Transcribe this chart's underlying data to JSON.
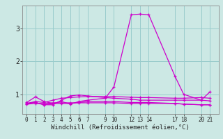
{
  "xlabel": "Windchill (Refroidissement éolien,°C)",
  "bg_color": "#cce8e4",
  "line_color": "#cc00cc",
  "grid_color": "#99cccc",
  "x_ticks": [
    0,
    1,
    2,
    3,
    4,
    5,
    6,
    7,
    9,
    10,
    12,
    13,
    14,
    17,
    18,
    20,
    21
  ],
  "y_ticks": [
    1,
    2,
    3
  ],
  "xlim": [
    -0.5,
    22
  ],
  "ylim": [
    0.4,
    3.7
  ],
  "lines": [
    {
      "x": [
        0,
        1,
        2,
        3,
        4,
        5,
        6,
        7,
        9,
        10,
        12,
        13,
        14,
        17,
        18,
        20,
        21
      ],
      "y": [
        0.75,
        0.92,
        0.78,
        0.72,
        0.78,
        0.7,
        0.78,
        0.82,
        0.88,
        1.22,
        3.42,
        3.44,
        3.42,
        1.55,
        1.0,
        0.82,
        1.07
      ]
    },
    {
      "x": [
        0,
        1,
        2,
        3,
        4,
        5,
        6,
        7,
        9,
        10,
        12,
        13,
        14,
        17,
        18,
        20,
        21
      ],
      "y": [
        0.72,
        0.78,
        0.75,
        0.82,
        0.88,
        0.9,
        0.92,
        0.93,
        0.93,
        0.93,
        0.91,
        0.9,
        0.9,
        0.88,
        0.88,
        0.9,
        0.88
      ]
    },
    {
      "x": [
        0,
        1,
        2,
        3,
        4,
        5,
        6,
        7,
        9,
        10,
        12,
        13,
        14,
        17,
        18,
        20,
        21
      ],
      "y": [
        0.72,
        0.75,
        0.68,
        0.68,
        0.82,
        0.95,
        0.98,
        0.95,
        0.9,
        0.88,
        0.85,
        0.82,
        0.82,
        0.82,
        0.82,
        0.82,
        0.8
      ]
    },
    {
      "x": [
        0,
        1,
        2,
        3,
        4,
        5,
        6,
        7,
        9,
        10,
        12,
        13,
        14,
        17,
        18,
        20,
        21
      ],
      "y": [
        0.72,
        0.75,
        0.68,
        0.72,
        0.72,
        0.72,
        0.75,
        0.78,
        0.78,
        0.78,
        0.75,
        0.75,
        0.75,
        0.72,
        0.7,
        0.68,
        0.68
      ]
    },
    {
      "x": [
        0,
        1,
        2,
        3,
        4,
        5,
        6,
        7,
        9,
        10,
        12,
        13,
        14,
        17,
        18,
        20,
        21
      ],
      "y": [
        0.7,
        0.72,
        0.72,
        0.74,
        0.74,
        0.74,
        0.74,
        0.74,
        0.74,
        0.74,
        0.72,
        0.72,
        0.72,
        0.72,
        0.7,
        0.68,
        0.68
      ]
    }
  ],
  "xlabel_fontsize": 6.5,
  "ytick_fontsize": 7,
  "xtick_fontsize": 5.5
}
